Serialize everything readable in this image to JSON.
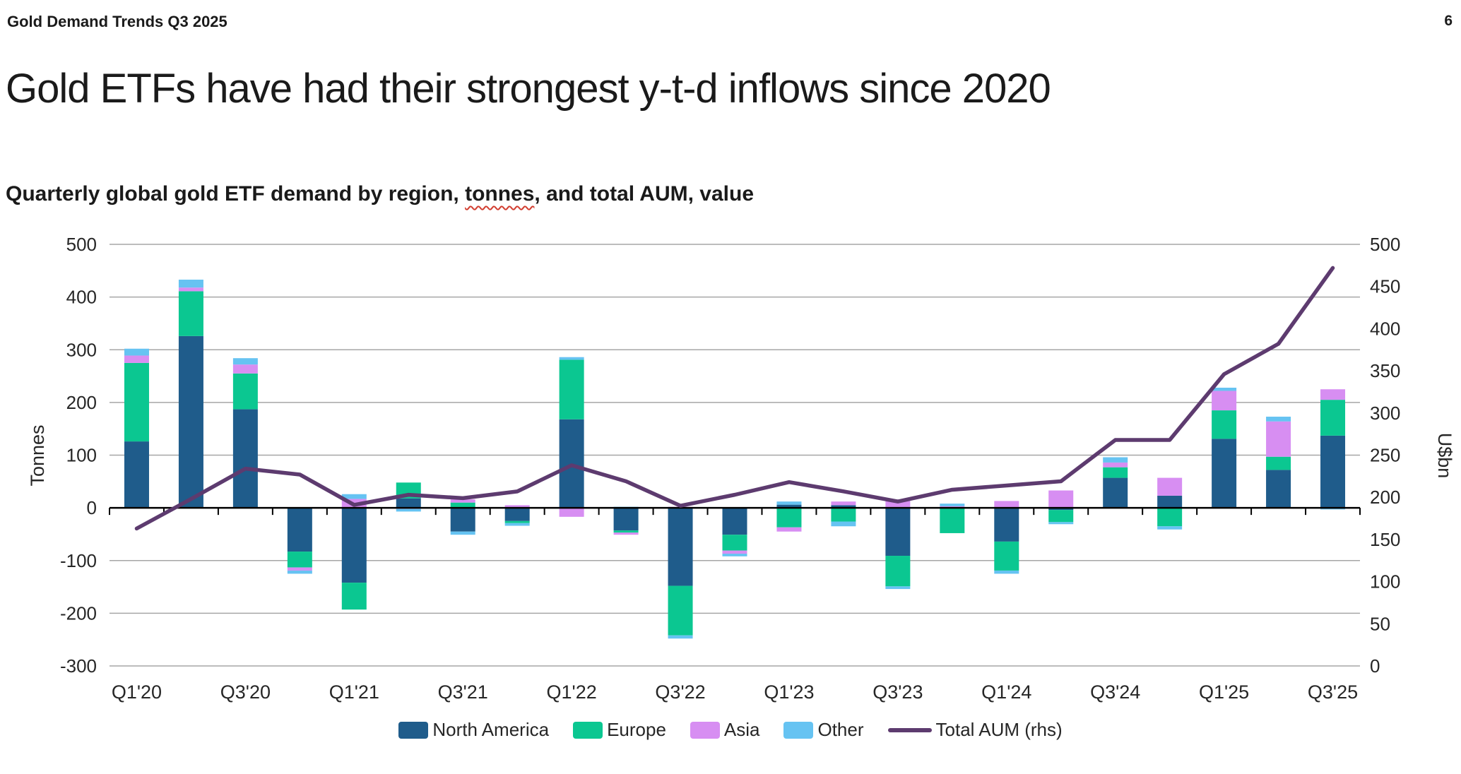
{
  "header": {
    "doc_title": "Gold Demand Trends Q3 2025",
    "page_number": "6"
  },
  "title": "Gold ETFs have had their strongest y-t-d inflows since 2020",
  "subtitle": {
    "prefix": "Quarterly global gold ETF demand by region, ",
    "highlight": "tonnes",
    "suffix": ", and total AUM, value"
  },
  "colors": {
    "north_america": "#1f5c8b",
    "europe": "#0bc791",
    "asia": "#d78ef2",
    "other": "#66c3f2",
    "aum_line": "#5d3b6f",
    "gridline": "#a6a6a6",
    "axis": "#000000",
    "tick_text": "#262626"
  },
  "chart_data": {
    "type": "combo: stacked bar (left axis, tonnes) + line (right axis, U$bn)",
    "categories": [
      "Q1'20",
      "Q2'20",
      "Q3'20",
      "Q4'20",
      "Q1'21",
      "Q2'21",
      "Q3'21",
      "Q4'21",
      "Q1'22",
      "Q2'22",
      "Q3'22",
      "Q4'22",
      "Q1'23",
      "Q2'23",
      "Q3'23",
      "Q4'23",
      "Q1'24",
      "Q2'24",
      "Q3'24",
      "Q4'24",
      "Q1'25",
      "Q2'25",
      "Q3'25"
    ],
    "x_tick_labels": [
      "Q1'20",
      "Q3'20",
      "Q1'21",
      "Q3'21",
      "Q1'22",
      "Q3'22",
      "Q1'23",
      "Q3'23",
      "Q1'24",
      "Q3'24",
      "Q1'25",
      "Q3'25"
    ],
    "series": [
      {
        "name": "North America",
        "color_key": "north_america",
        "values": [
          126,
          326,
          187,
          -83,
          -142,
          18,
          -45,
          -25,
          168,
          -43,
          -148,
          -51,
          6,
          5,
          -91,
          -1,
          -64,
          -4,
          57,
          23,
          131,
          72,
          137
        ]
      },
      {
        "name": "Europe",
        "color_key": "europe",
        "values": [
          149,
          85,
          68,
          -30,
          -51,
          30,
          10,
          -4,
          113,
          -4,
          -94,
          -30,
          -37,
          -26,
          -58,
          -47,
          -55,
          -23,
          20,
          -35,
          54,
          25,
          68
        ]
      },
      {
        "name": "Asia",
        "color_key": "asia",
        "values": [
          14,
          7,
          17,
          -6,
          17,
          -2,
          6,
          5,
          -17,
          -4,
          2,
          -6,
          -8,
          7,
          16,
          3,
          13,
          33,
          9,
          34,
          37,
          67,
          20
        ]
      },
      {
        "name": "Other",
        "color_key": "other",
        "values": [
          13,
          15,
          12,
          -6,
          9,
          -5,
          -6,
          -5,
          5,
          2,
          -6,
          -5,
          6,
          -9,
          -5,
          5,
          -6,
          -4,
          10,
          -6,
          6,
          9,
          -3
        ]
      }
    ],
    "line_series": {
      "name": "Total AUM (rhs)",
      "color_key": "aum_line",
      "axis": "right",
      "values": [
        163,
        198,
        234,
        227,
        191,
        203,
        199,
        207,
        238,
        219,
        190,
        203,
        218,
        207,
        195,
        209,
        214,
        219,
        268,
        268,
        346,
        382,
        472
      ]
    },
    "left_axis": {
      "label": "Tonnes",
      "min": -300,
      "max": 500,
      "step": 100
    },
    "right_axis": {
      "label": "U$bn",
      "min": 0,
      "max": 500,
      "step": 50
    },
    "grid": "horizontal gridlines at left-axis steps; zero line black with quarter ticks",
    "legend_position": "bottom center",
    "legend": [
      {
        "label": "North America",
        "color_key": "north_america",
        "kind": "swatch"
      },
      {
        "label": "Europe",
        "color_key": "europe",
        "kind": "swatch"
      },
      {
        "label": "Asia",
        "color_key": "asia",
        "kind": "swatch"
      },
      {
        "label": "Other",
        "color_key": "other",
        "kind": "swatch"
      },
      {
        "label": "Total AUM (rhs)",
        "color_key": "aum_line",
        "kind": "line"
      }
    ]
  }
}
